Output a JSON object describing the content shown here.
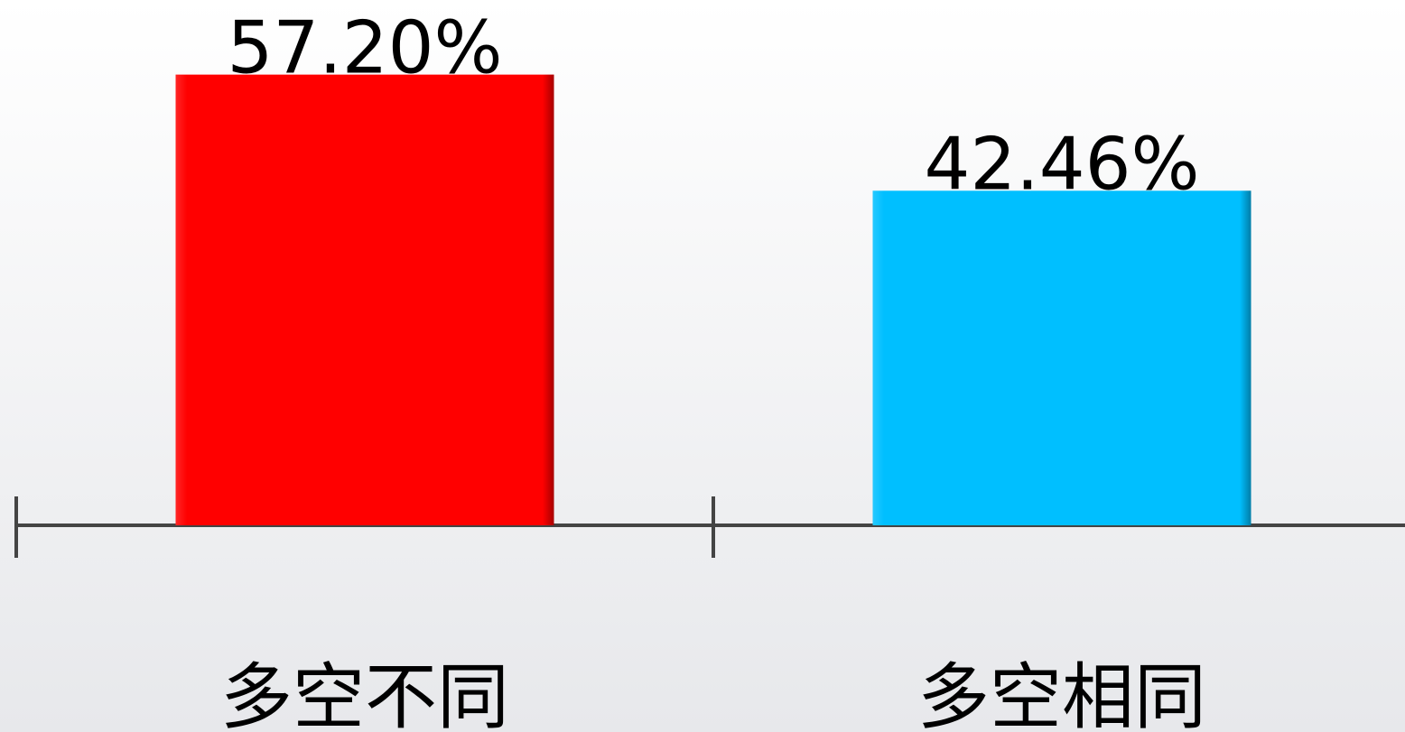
{
  "chart_data": {
    "type": "bar",
    "categories": [
      "多空不同",
      "多空相同"
    ],
    "values": [
      57.2,
      42.46
    ],
    "value_labels": [
      "57.20%",
      "42.46%"
    ],
    "colors": [
      "#ff0000",
      "#00bfff"
    ]
  }
}
